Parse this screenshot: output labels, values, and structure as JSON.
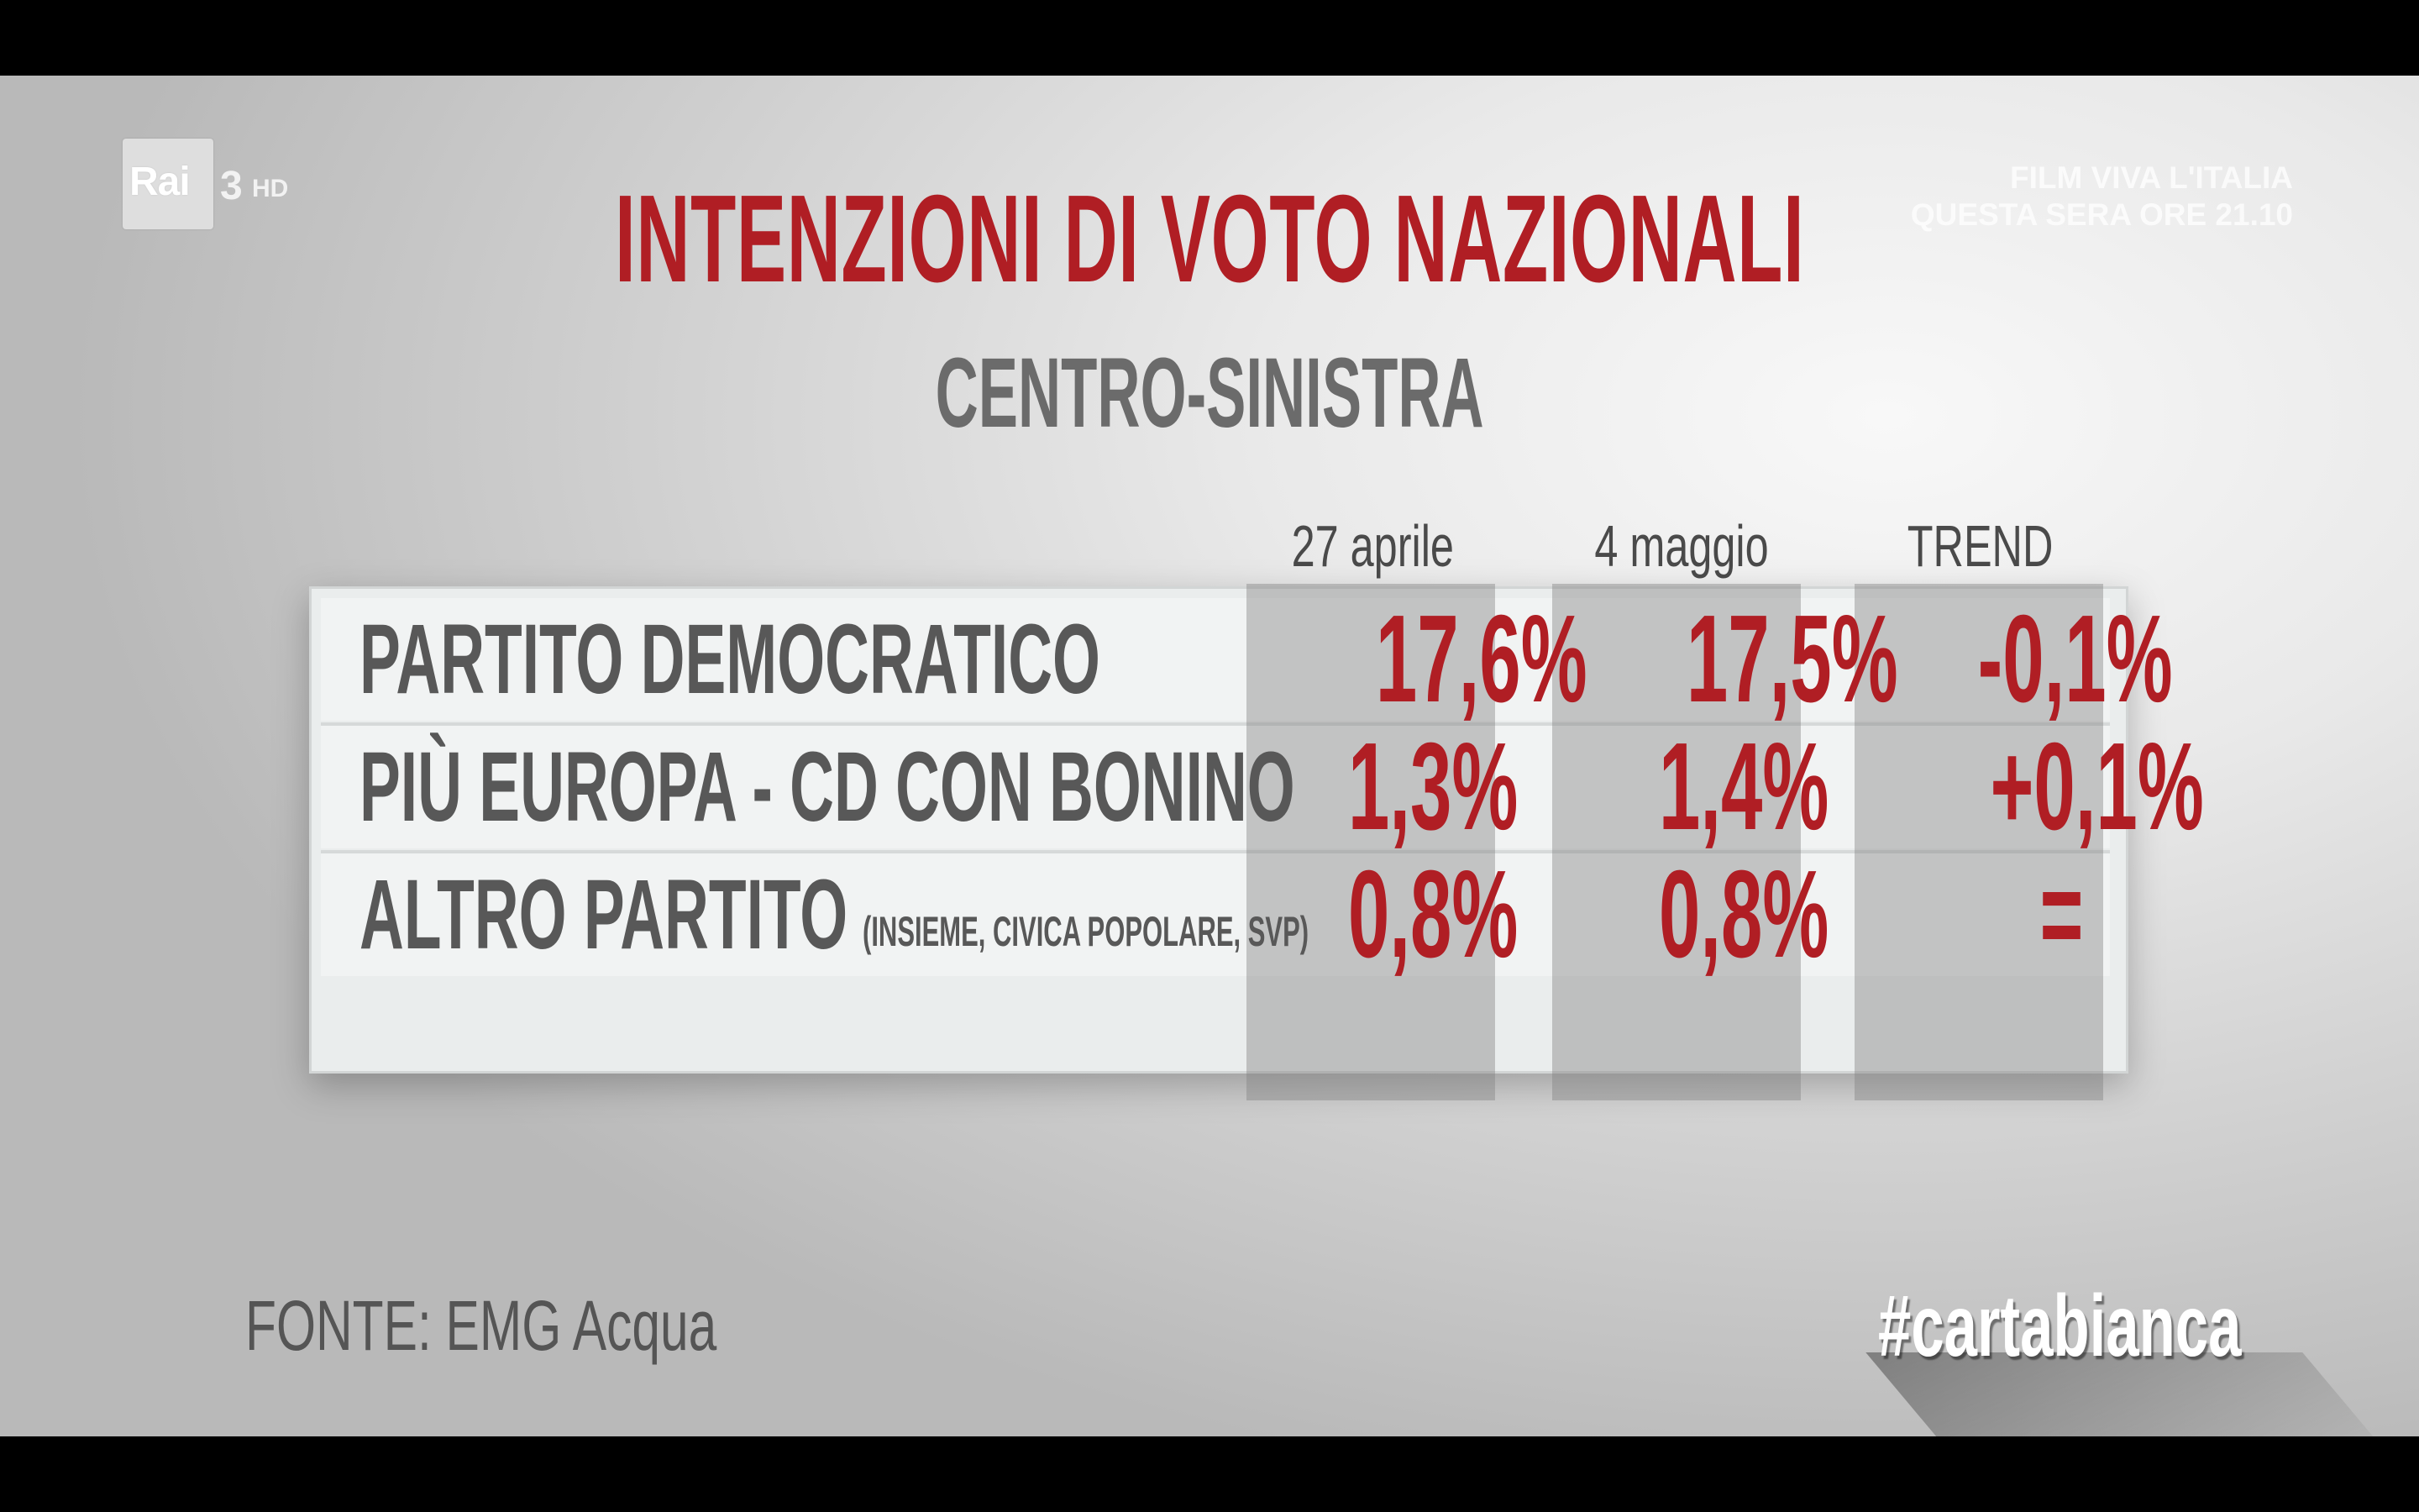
{
  "broadcaster": {
    "logo_text": "Rai",
    "channel_number": "3",
    "channel_hd": "HD"
  },
  "promo": {
    "line1": "FILM VIVA L'ITALIA",
    "line2": "QUESTA SERA ORE 21.10"
  },
  "chart_data": {
    "type": "table",
    "title": "INTENZIONI DI VOTO NAZIONALI",
    "subtitle": "CENTRO-SINISTRA",
    "columns": [
      "27 aprile",
      "4 maggio",
      "TREND"
    ],
    "rows": [
      {
        "party": "PARTITO DEMOCRATICO",
        "note": "",
        "values": [
          "17,6%",
          "17,5%",
          "-0,1%"
        ]
      },
      {
        "party": "PIÙ EUROPA - CD CON BONINO",
        "note": "",
        "values": [
          "1,3%",
          "1,4%",
          "+0,1%"
        ]
      },
      {
        "party": "ALTRO PARTITO",
        "note": "(INSIEME, CIVICA POPOLARE, SVP)",
        "values": [
          "0,8%",
          "0,8%",
          "="
        ]
      }
    ],
    "numeric": {
      "27 aprile": [
        17.6,
        1.3,
        0.8
      ],
      "4 maggio": [
        17.5,
        1.4,
        0.8
      ],
      "trend": [
        -0.1,
        0.1,
        0
      ]
    },
    "colors": {
      "values": "#b01e24",
      "title": "#b01e24",
      "labels": "#585858"
    }
  },
  "source": "FONTE: EMG Acqua",
  "hashtag": "#cartabianca"
}
